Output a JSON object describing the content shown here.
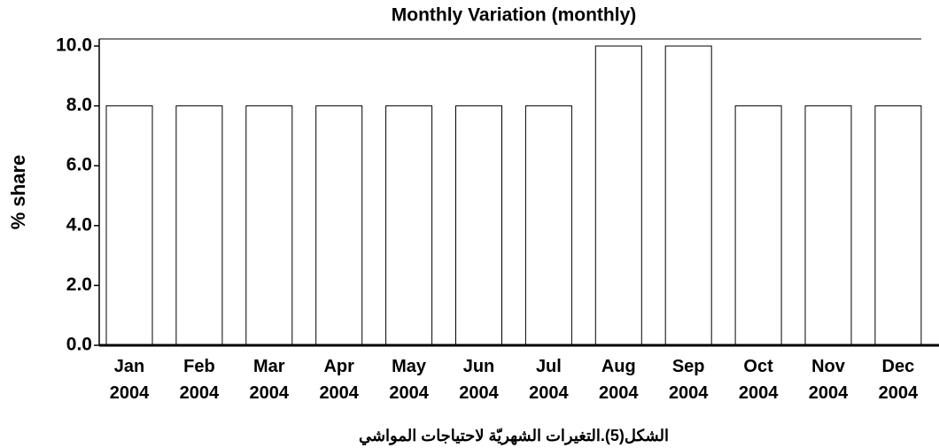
{
  "chart_data": {
    "type": "bar",
    "title": "Monthly Variation (monthly)",
    "y_label": "% share",
    "x_label": "الشكل(5).التغيرات الشهريّة لاحتياجات المواشي",
    "categories": [
      "Jan 2004",
      "Feb 2004",
      "Mar 2004",
      "Apr 2004",
      "May 2004",
      "Jun 2004",
      "Jul 2004",
      "Aug 2004",
      "Sep 2004",
      "Oct 2004",
      "Nov 2004",
      "Dec 2004"
    ],
    "values": [
      8,
      8,
      8,
      8,
      8,
      8,
      8,
      10,
      10,
      8,
      8,
      8
    ],
    "color": "#ffffff",
    "ylim": [
      0,
      10
    ],
    "yticks": [
      {
        "value": 0,
        "label": "0.0"
      },
      {
        "value": 2,
        "label": "2.0"
      },
      {
        "value": 4,
        "label": "4.0"
      },
      {
        "value": 6,
        "label": "6.0"
      },
      {
        "value": 8,
        "label": "8.0"
      },
      {
        "value": 10,
        "label": "10.0"
      }
    ],
    "grid": false
  }
}
